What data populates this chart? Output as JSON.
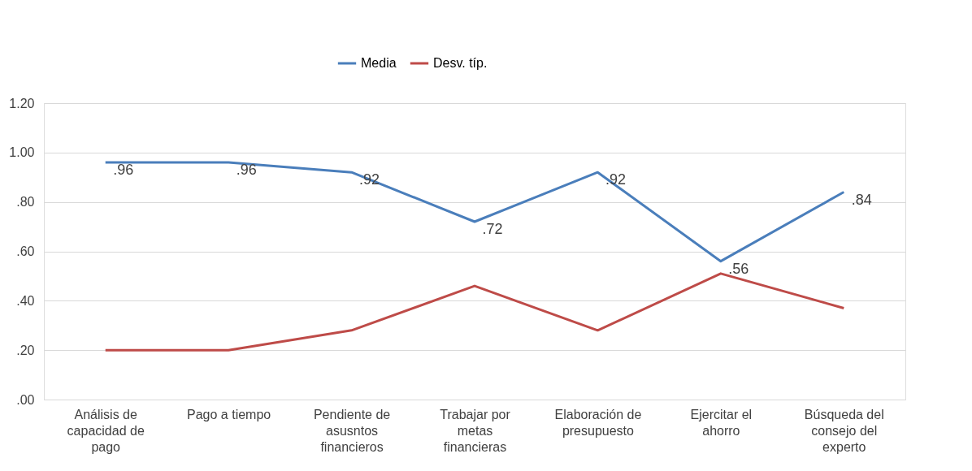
{
  "chart_data": {
    "type": "line",
    "categories": [
      "Análisis de capacidad de pago",
      "Pago a tiempo",
      "Pendiente de asusntos financieros",
      "Trabajar por metas financieras",
      "Elaboración de presupuesto",
      "Ejercitar el ahorro",
      "Búsqueda del consejo del experto"
    ],
    "series": [
      {
        "name": "Media",
        "color": "#4a7ebb",
        "values": [
          0.96,
          0.96,
          0.92,
          0.72,
          0.92,
          0.56,
          0.84
        ],
        "value_labels": [
          ".96",
          ".96",
          ".92",
          ".72",
          ".92",
          ".56",
          ".84"
        ]
      },
      {
        "name": "Desv. típ.",
        "color": "#be4b48",
        "values": [
          0.2,
          0.2,
          0.28,
          0.46,
          0.28,
          0.51,
          0.37
        ]
      }
    ],
    "ylim": [
      0,
      1.2
    ],
    "yticks": [
      {
        "value": 0,
        "label": ".00"
      },
      {
        "value": 0.2,
        "label": ".20"
      },
      {
        "value": 0.4,
        "label": ".40"
      },
      {
        "value": 0.6,
        "label": ".60"
      },
      {
        "value": 0.8,
        "label": ".80"
      },
      {
        "value": 1.0,
        "label": "1.00"
      },
      {
        "value": 1.2,
        "label": "1.20"
      }
    ],
    "grid": "y",
    "legend": "top",
    "marker": "none",
    "line_style": "solid"
  }
}
